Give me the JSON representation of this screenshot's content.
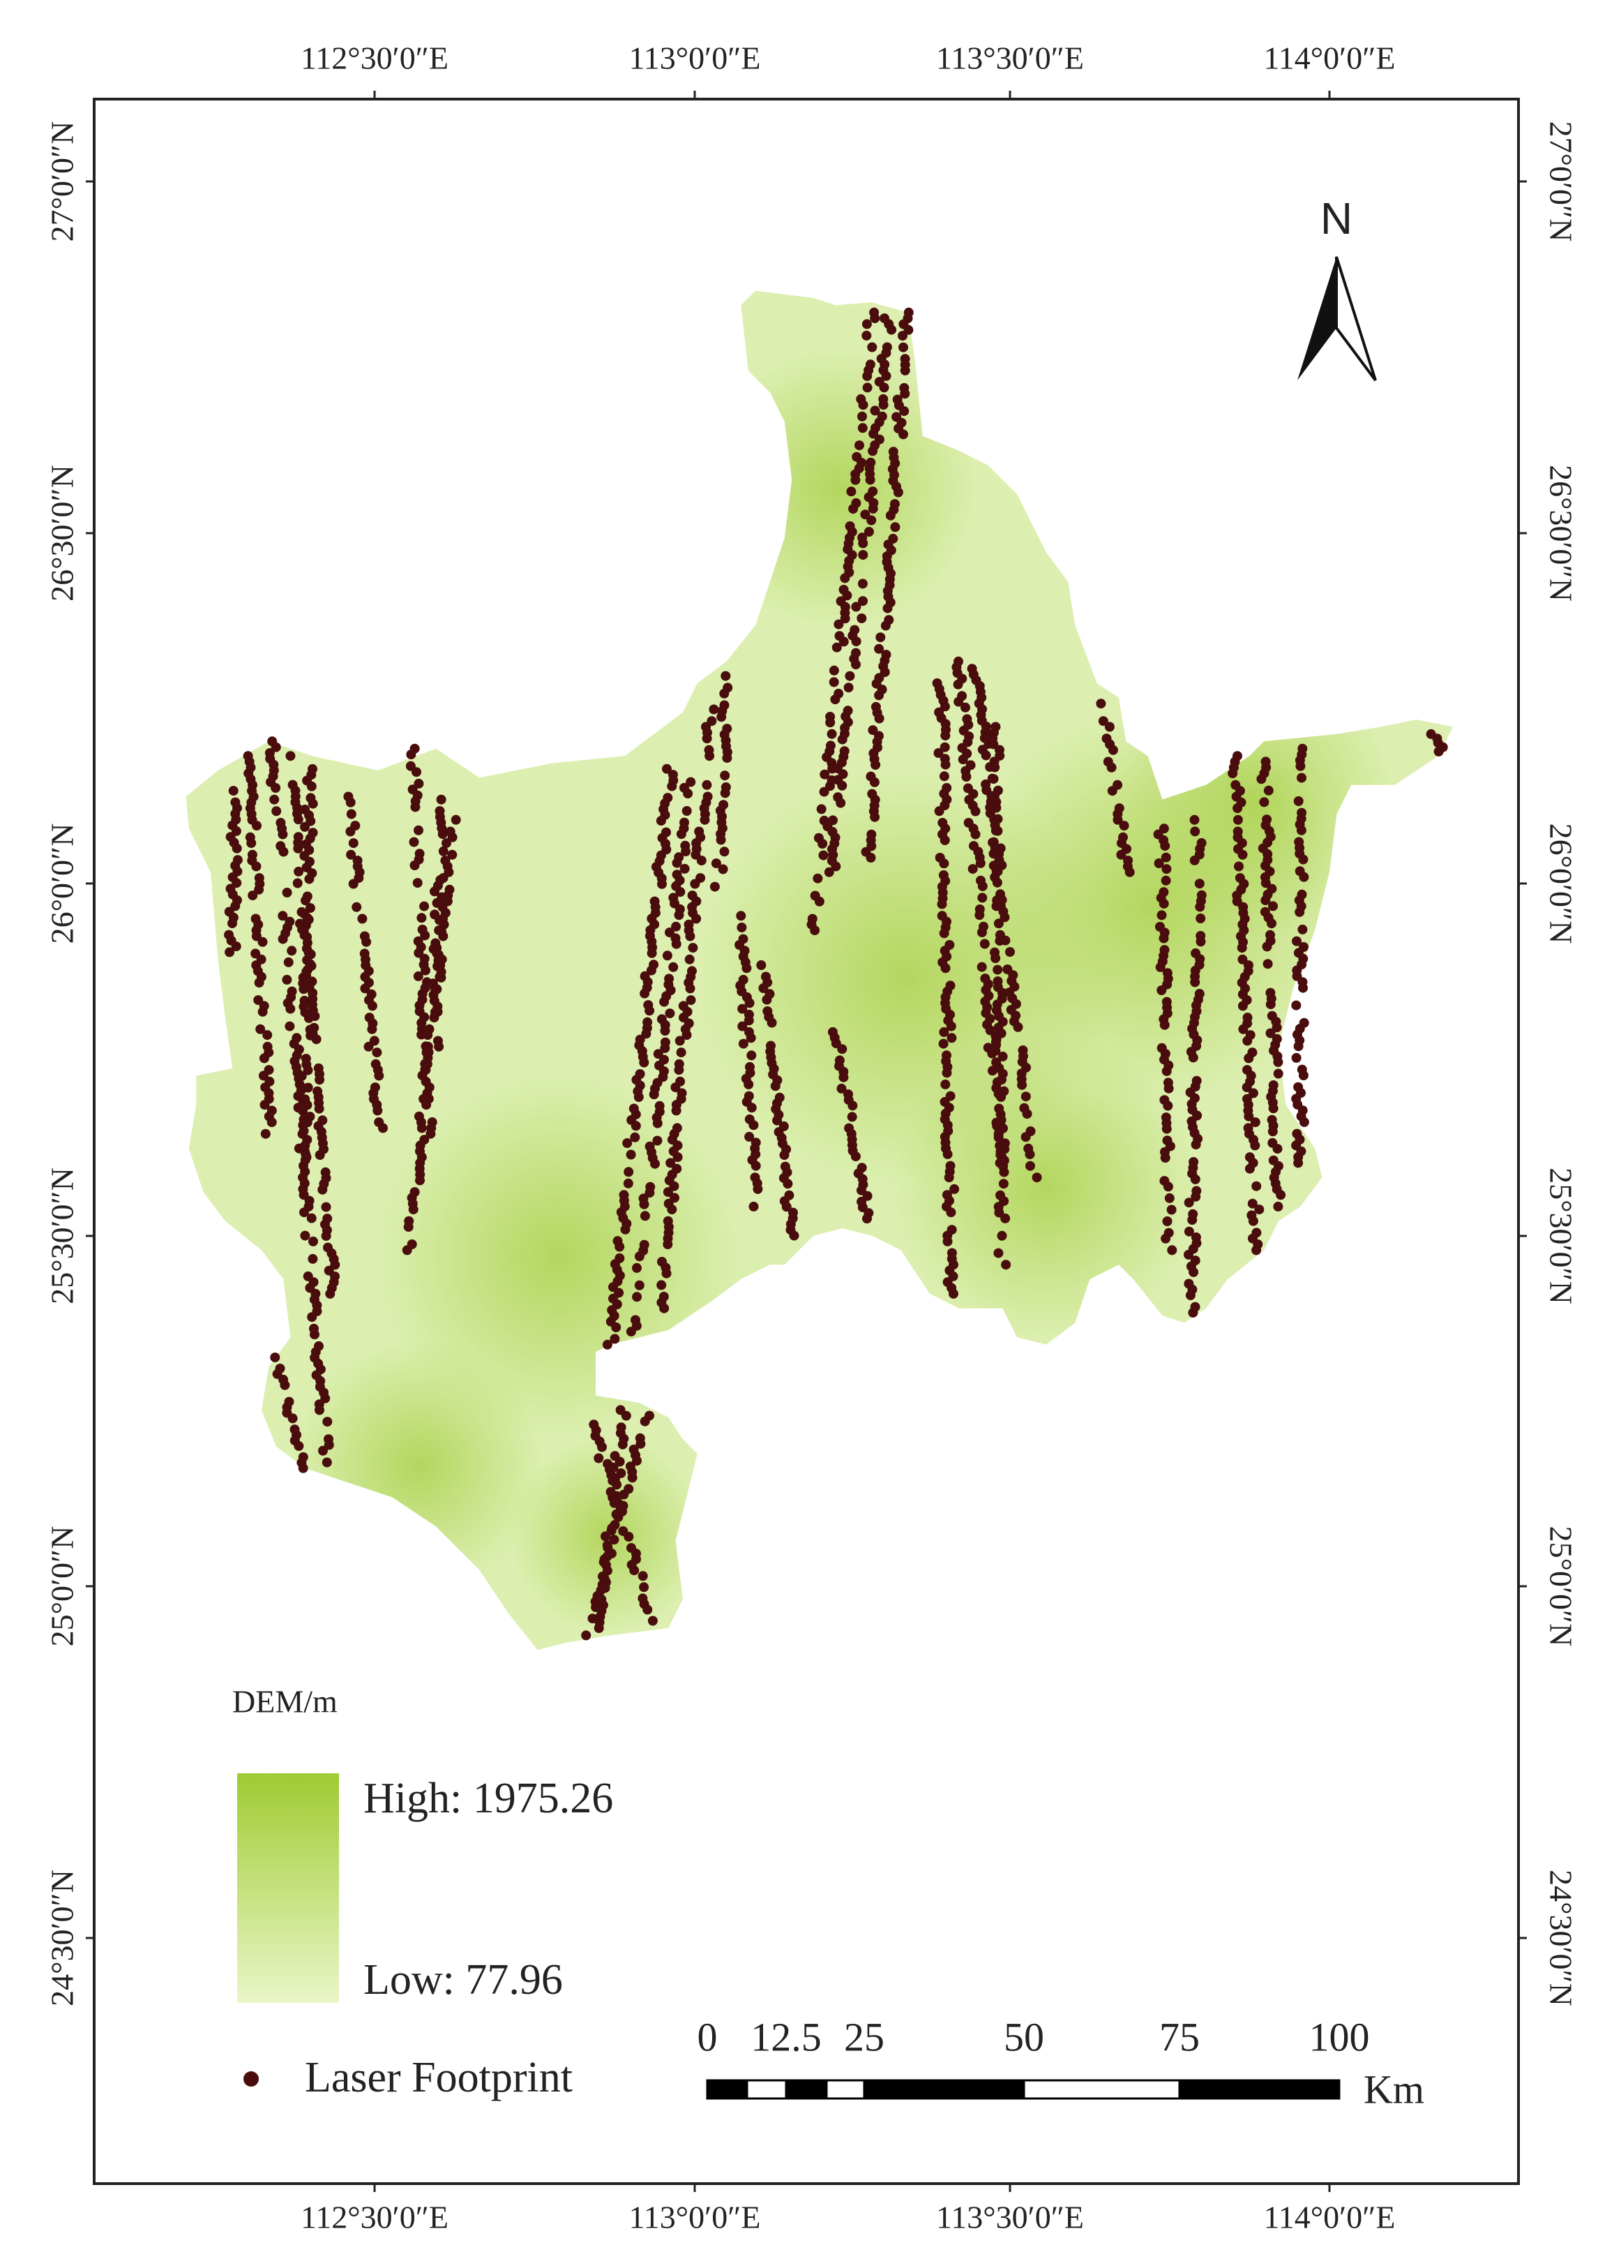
{
  "map": {
    "top_longitudes": [
      "112°30′0″E",
      "113°0′0″E",
      "113°30′0″E",
      "114°0′0″E"
    ],
    "bottom_longitudes": [
      "112°30′0″E",
      "113°0′0″E",
      "113°30′0″E",
      "114°0′0″E"
    ],
    "left_latitudes": [
      "27°0′0″N",
      "26°30′0″N",
      "26°0′0″N",
      "25°30′0″N",
      "25°0′0″N",
      "24°30′0″N"
    ],
    "right_latitudes": [
      "27°0′0″N",
      "26°30′0″N",
      "26°0′0″N",
      "25°30′0″N",
      "25°0′0″N",
      "24°30′0″N"
    ],
    "north": "N",
    "legend": {
      "title": "DEM/m",
      "high": "High: 1975.26",
      "low": "Low: 77.96",
      "footprint": "Laser Footprint"
    },
    "scale_bar": {
      "labels": [
        "0",
        "12.5",
        "25",
        "50",
        "75",
        "100"
      ],
      "unit": "Km"
    }
  }
}
